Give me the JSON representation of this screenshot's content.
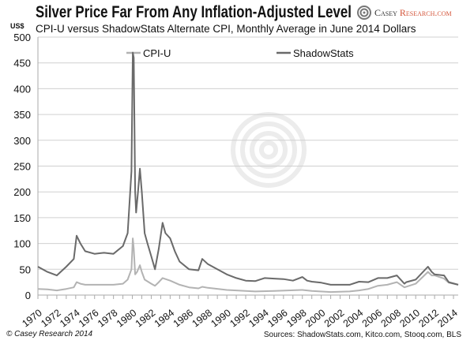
{
  "header": {
    "title": "Silver Price Far From Any Inflation-Adjusted Level",
    "subtitle": "CPI-U versus ShadowStats Alternate CPI, Monthly Average in June 2014 Dollars",
    "unit": "US$"
  },
  "logo": {
    "text_a": "Casey ",
    "text_b": "Research.com"
  },
  "footer": {
    "copyright": "© Casey Research 2014",
    "sources": "Sources: ShadowStats.com, Kitco.com, Stooq.com, BLS"
  },
  "chart_data": {
    "type": "line",
    "title": "Silver Price Far From Any Inflation-Adjusted Level",
    "ylabel": "US$",
    "ylim": [
      0,
      500
    ],
    "xlim": [
      1970,
      2014.5
    ],
    "yticks": [
      0,
      50,
      100,
      150,
      200,
      250,
      300,
      350,
      400,
      450,
      500
    ],
    "xticks": [
      "1970",
      "1972",
      "1974",
      "1976",
      "1978",
      "1980",
      "1982",
      "1984",
      "1986",
      "1988",
      "1990",
      "1992",
      "1994",
      "1996",
      "1998",
      "2000",
      "2002",
      "2004",
      "2006",
      "2008",
      "2010",
      "2012",
      "2014"
    ],
    "grid": true,
    "legend": "top",
    "series": [
      {
        "name": "CPI-U",
        "color": "#b3b3b3",
        "x": [
          1970,
          1971,
          1972,
          1973,
          1973.8,
          1974.1,
          1974.5,
          1975,
          1976,
          1977,
          1978,
          1979,
          1979.5,
          1979.9,
          1980.05,
          1980.15,
          1980.3,
          1980.5,
          1980.8,
          1981,
          1981.3,
          1982,
          1982.4,
          1982.8,
          1983.2,
          1984,
          1985,
          1986,
          1987,
          1987.4,
          1988,
          1990,
          1993,
          1995,
          1998,
          1999,
          2001,
          2003,
          2004,
          2005,
          2006,
          2007,
          2008,
          2008.8,
          2010,
          2011.3,
          2011.7,
          2012,
          2013,
          2013.5,
          2014.5
        ],
        "y": [
          12,
          11,
          9,
          12,
          15,
          25,
          22,
          20,
          20,
          20,
          20,
          22,
          30,
          50,
          110,
          90,
          40,
          45,
          58,
          45,
          30,
          22,
          18,
          25,
          33,
          28,
          20,
          15,
          13,
          16,
          14,
          10,
          7,
          8,
          10,
          8,
          6,
          7,
          9,
          12,
          18,
          20,
          25,
          15,
          22,
          45,
          38,
          38,
          32,
          24,
          20
        ]
      },
      {
        "name": "ShadowStats",
        "color": "#6a6a6a",
        "x": [
          1970,
          1971,
          1972,
          1973,
          1973.8,
          1974.1,
          1974.5,
          1975,
          1976,
          1977,
          1978,
          1979,
          1979.5,
          1979.9,
          1980.05,
          1980.15,
          1980.3,
          1980.4,
          1980.6,
          1980.8,
          1981,
          1981.3,
          1981.6,
          1982,
          1982.4,
          1982.8,
          1983.2,
          1983.5,
          1984,
          1984.5,
          1985,
          1986,
          1987,
          1987.4,
          1988,
          1989,
          1990,
          1991,
          1992,
          1993,
          1994,
          1995,
          1996,
          1997,
          1998,
          1998.5,
          1999,
          2000,
          2001,
          2002,
          2003,
          2004,
          2005,
          2006,
          2007,
          2008,
          2008.8,
          2009,
          2010,
          2011.3,
          2011.7,
          2012,
          2013,
          2013.5,
          2014.5
        ],
        "y": [
          55,
          45,
          38,
          55,
          70,
          115,
          100,
          85,
          80,
          82,
          80,
          95,
          120,
          240,
          470,
          460,
          200,
          160,
          200,
          245,
          200,
          120,
          100,
          75,
          50,
          90,
          140,
          120,
          110,
          85,
          65,
          50,
          48,
          70,
          60,
          50,
          40,
          33,
          28,
          27,
          33,
          32,
          31,
          28,
          35,
          28,
          26,
          24,
          20,
          20,
          20,
          26,
          25,
          33,
          33,
          38,
          22,
          25,
          30,
          55,
          45,
          40,
          38,
          25,
          20
        ]
      }
    ]
  }
}
